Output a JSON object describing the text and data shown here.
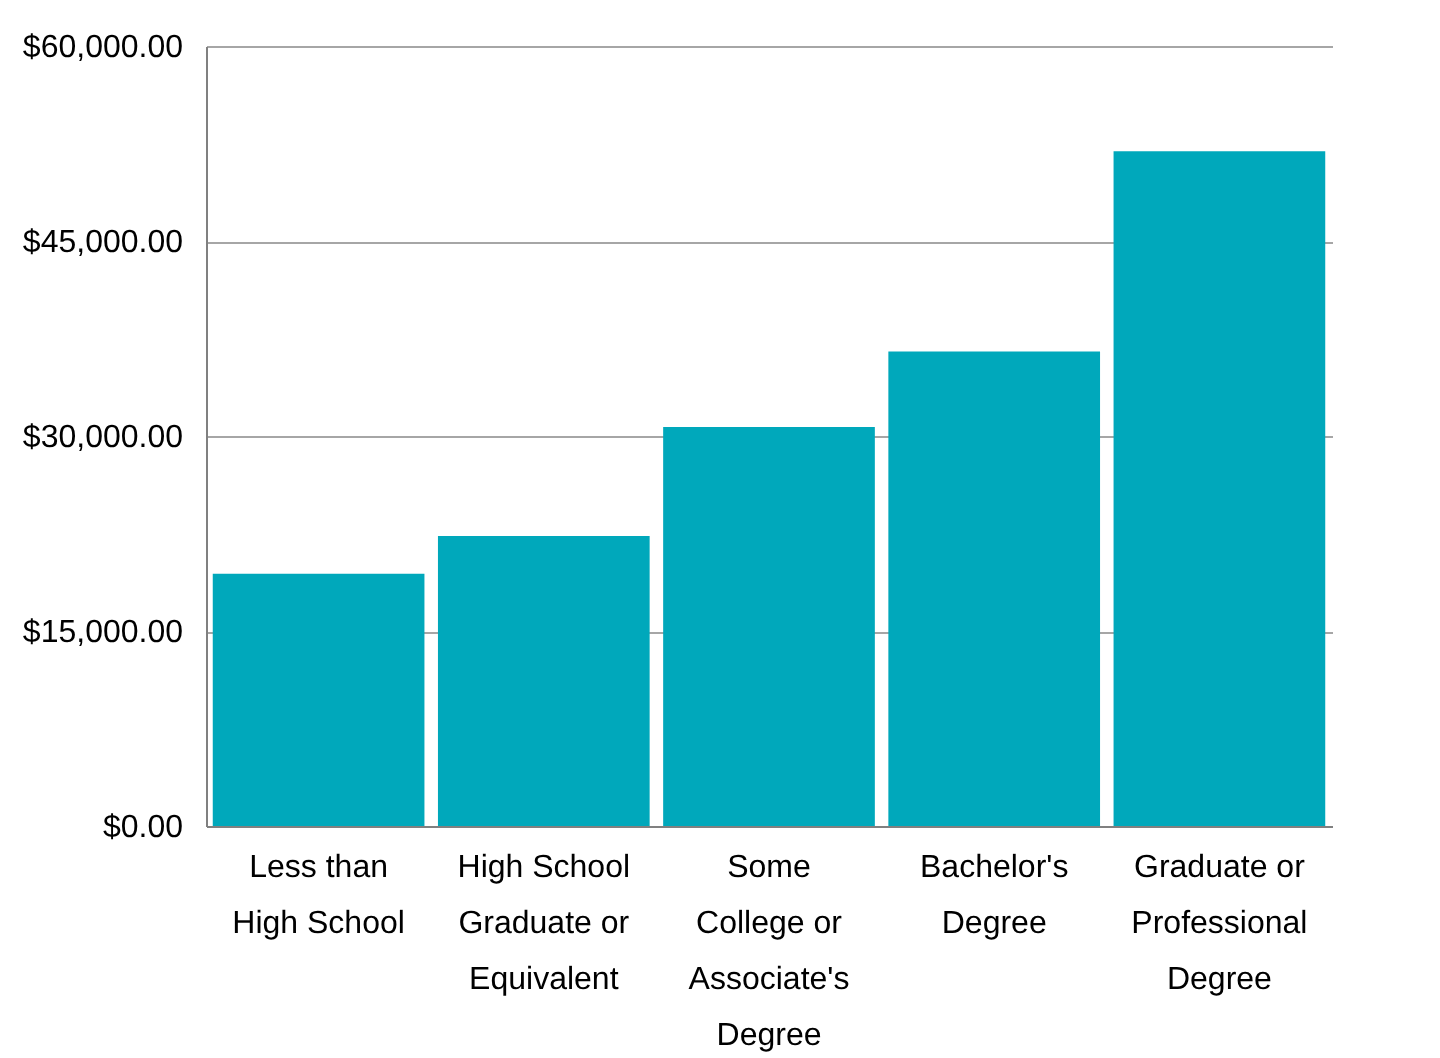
{
  "chart_data": {
    "type": "bar",
    "categories": [
      "Less than High School",
      "High School Graduate or Equivalent",
      "Some College or Associate's Degree",
      "Bachelor's Degree",
      "Graduate or Professional Degree"
    ],
    "values": [
      19400,
      22300,
      30700,
      36500,
      51900
    ],
    "color": "#00a8bb",
    "ylim": [
      0,
      60000
    ],
    "yticks": [
      {
        "value": 0,
        "label": "$0.00"
      },
      {
        "value": 15000,
        "label": "$15,000.00"
      },
      {
        "value": 30000,
        "label": "$30,000.00"
      },
      {
        "value": 45000,
        "label": "$45,000.00"
      },
      {
        "value": 60000,
        "label": "$60,000.00"
      }
    ],
    "grid": "y"
  }
}
